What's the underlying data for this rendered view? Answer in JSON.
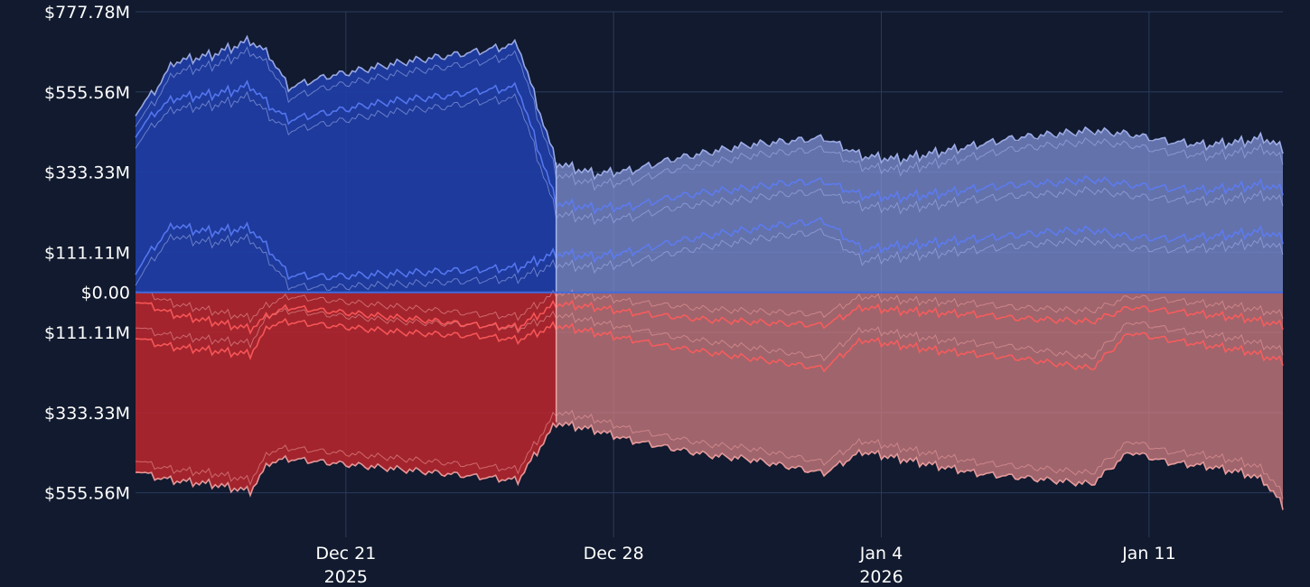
{
  "chart_data": {
    "type": "area",
    "title": "",
    "xlabel": "",
    "ylabel": "",
    "x_range": [
      "2025-12-15T12:00",
      "2026-01-14T12:00"
    ],
    "ylim": [
      -666.67,
      777.78
    ],
    "y_unit": "$M (positive = long side, negative = short side)",
    "y_ticks": [
      {
        "value": 777.78,
        "label": "$777.78M"
      },
      {
        "value": 555.56,
        "label": "$555.56M"
      },
      {
        "value": 333.33,
        "label": "$333.33M"
      },
      {
        "value": 111.11,
        "label": "$111.11M"
      },
      {
        "value": 0,
        "label": "$0.00"
      },
      {
        "value": -111.11,
        "label": "$111.11M"
      },
      {
        "value": -333.33,
        "label": "$333.33M"
      },
      {
        "value": -555.56,
        "label": "$555.56M"
      }
    ],
    "x_ticks": [
      {
        "date": "2025-12-21",
        "label": "Dec 21",
        "year": "2025"
      },
      {
        "date": "2025-12-28",
        "label": "Dec 28",
        "year": ""
      },
      {
        "date": "2026-01-04",
        "label": "Jan 4",
        "year": "2026"
      },
      {
        "date": "2026-01-11",
        "label": "Jan 11",
        "year": ""
      }
    ],
    "regime_split": "2025-12-26T12:00",
    "colors": {
      "long_line": "#5b7cf7",
      "long_line_light": "#a7b6f2",
      "long_fill_dark": "#1f3ea8",
      "long_fill_light": "#7f90d6",
      "short_line": "#ff5b5b",
      "short_line_light": "#f3a3a3",
      "short_fill_dark": "#b4262d",
      "short_fill_light": "#d07d82",
      "zero_line": "#3f6ae0",
      "background": "#111a2e"
    },
    "series": [
      {
        "name": "long_band_top",
        "side": "long",
        "values": [
          [
            0,
            500
          ],
          [
            0.5,
            560
          ],
          [
            1,
            640
          ],
          [
            1.5,
            650
          ],
          [
            2,
            660
          ],
          [
            2.5,
            680
          ],
          [
            3,
            700
          ],
          [
            3.5,
            660
          ],
          [
            4,
            570
          ],
          [
            5,
            600
          ],
          [
            6,
            620
          ],
          [
            7,
            640
          ],
          [
            8,
            655
          ],
          [
            9,
            670
          ],
          [
            10,
            690
          ],
          [
            11,
            360
          ],
          [
            12,
            330
          ],
          [
            13,
            340
          ],
          [
            14,
            370
          ],
          [
            15,
            390
          ],
          [
            16,
            410
          ],
          [
            17,
            420
          ],
          [
            18,
            430
          ],
          [
            19,
            380
          ],
          [
            20,
            370
          ],
          [
            21,
            390
          ],
          [
            22,
            410
          ],
          [
            23,
            430
          ],
          [
            24,
            440
          ],
          [
            25,
            450
          ],
          [
            26,
            440
          ],
          [
            27,
            420
          ],
          [
            28,
            410
          ],
          [
            29,
            420
          ],
          [
            29.5,
            430
          ],
          [
            30,
            400
          ]
        ]
      },
      {
        "name": "long_band_mid",
        "side": "long",
        "values": [
          [
            0,
            440
          ],
          [
            0.5,
            500
          ],
          [
            1,
            540
          ],
          [
            1.5,
            545
          ],
          [
            2,
            550
          ],
          [
            2.5,
            560
          ],
          [
            3,
            575
          ],
          [
            3.5,
            520
          ],
          [
            4,
            480
          ],
          [
            5,
            500
          ],
          [
            6,
            520
          ],
          [
            7,
            535
          ],
          [
            8,
            545
          ],
          [
            9,
            560
          ],
          [
            10,
            570
          ],
          [
            11,
            250
          ],
          [
            12,
            235
          ],
          [
            13,
            240
          ],
          [
            14,
            265
          ],
          [
            15,
            280
          ],
          [
            16,
            290
          ],
          [
            17,
            305
          ],
          [
            18,
            310
          ],
          [
            19,
            270
          ],
          [
            20,
            265
          ],
          [
            21,
            275
          ],
          [
            22,
            290
          ],
          [
            23,
            300
          ],
          [
            24,
            305
          ],
          [
            25,
            315
          ],
          [
            26,
            300
          ],
          [
            27,
            290
          ],
          [
            28,
            285
          ],
          [
            29,
            295
          ],
          [
            29.5,
            300
          ],
          [
            30,
            285
          ]
        ]
      },
      {
        "name": "long_band_low",
        "side": "long",
        "values": [
          [
            0,
            60
          ],
          [
            0.5,
            130
          ],
          [
            1,
            190
          ],
          [
            1.5,
            175
          ],
          [
            2,
            170
          ],
          [
            2.5,
            175
          ],
          [
            3,
            180
          ],
          [
            3.5,
            120
          ],
          [
            4,
            50
          ],
          [
            5,
            45
          ],
          [
            6,
            50
          ],
          [
            7,
            55
          ],
          [
            8,
            60
          ],
          [
            9,
            65
          ],
          [
            10,
            70
          ],
          [
            11,
            110
          ],
          [
            12,
            100
          ],
          [
            13,
            115
          ],
          [
            14,
            140
          ],
          [
            15,
            160
          ],
          [
            16,
            175
          ],
          [
            17,
            190
          ],
          [
            18,
            200
          ],
          [
            19,
            120
          ],
          [
            20,
            130
          ],
          [
            21,
            140
          ],
          [
            22,
            150
          ],
          [
            23,
            160
          ],
          [
            24,
            170
          ],
          [
            25,
            175
          ],
          [
            26,
            155
          ],
          [
            27,
            150
          ],
          [
            28,
            155
          ],
          [
            29,
            165
          ],
          [
            29.5,
            170
          ],
          [
            30,
            150
          ]
        ]
      },
      {
        "name": "short_band_top",
        "side": "short",
        "values": [
          [
            0,
            -20
          ],
          [
            0.5,
            -40
          ],
          [
            1,
            -60
          ],
          [
            1.5,
            -70
          ],
          [
            2,
            -80
          ],
          [
            2.5,
            -90
          ],
          [
            3,
            -100
          ],
          [
            3.5,
            -60
          ],
          [
            4,
            -40
          ],
          [
            5,
            -50
          ],
          [
            6,
            -60
          ],
          [
            7,
            -70
          ],
          [
            8,
            -80
          ],
          [
            9,
            -90
          ],
          [
            10,
            -95
          ],
          [
            11,
            -30
          ],
          [
            12,
            -40
          ],
          [
            13,
            -55
          ],
          [
            14,
            -65
          ],
          [
            15,
            -75
          ],
          [
            16,
            -80
          ],
          [
            17,
            -85
          ],
          [
            18,
            -90
          ],
          [
            19,
            -40
          ],
          [
            20,
            -50
          ],
          [
            21,
            -55
          ],
          [
            22,
            -60
          ],
          [
            23,
            -70
          ],
          [
            24,
            -75
          ],
          [
            25,
            -80
          ],
          [
            26,
            -40
          ],
          [
            27,
            -50
          ],
          [
            28,
            -60
          ],
          [
            29,
            -70
          ],
          [
            29.5,
            -80
          ],
          [
            30,
            -90
          ]
        ]
      },
      {
        "name": "short_band_mid",
        "side": "short",
        "values": [
          [
            0,
            -120
          ],
          [
            0.5,
            -140
          ],
          [
            1,
            -150
          ],
          [
            1.5,
            -155
          ],
          [
            2,
            -160
          ],
          [
            2.5,
            -165
          ],
          [
            3,
            -170
          ],
          [
            3.5,
            -90
          ],
          [
            4,
            -80
          ],
          [
            5,
            -90
          ],
          [
            6,
            -100
          ],
          [
            7,
            -110
          ],
          [
            8,
            -115
          ],
          [
            9,
            -120
          ],
          [
            10,
            -130
          ],
          [
            11,
            -90
          ],
          [
            12,
            -110
          ],
          [
            13,
            -130
          ],
          [
            14,
            -150
          ],
          [
            15,
            -165
          ],
          [
            16,
            -180
          ],
          [
            17,
            -195
          ],
          [
            18,
            -210
          ],
          [
            19,
            -130
          ],
          [
            20,
            -145
          ],
          [
            21,
            -160
          ],
          [
            22,
            -170
          ],
          [
            23,
            -180
          ],
          [
            24,
            -195
          ],
          [
            25,
            -210
          ],
          [
            26,
            -110
          ],
          [
            27,
            -130
          ],
          [
            28,
            -145
          ],
          [
            29,
            -160
          ],
          [
            29.5,
            -175
          ],
          [
            30,
            -190
          ]
        ]
      },
      {
        "name": "short_band_bottom",
        "side": "short",
        "values": [
          [
            0,
            -490
          ],
          [
            0.5,
            -510
          ],
          [
            1,
            -520
          ],
          [
            1.5,
            -525
          ],
          [
            2,
            -530
          ],
          [
            2.5,
            -540
          ],
          [
            3,
            -550
          ],
          [
            3.5,
            -470
          ],
          [
            4,
            -460
          ],
          [
            5,
            -470
          ],
          [
            6,
            -480
          ],
          [
            7,
            -490
          ],
          [
            8,
            -500
          ],
          [
            9,
            -510
          ],
          [
            10,
            -520
          ],
          [
            11,
            -360
          ],
          [
            12,
            -380
          ],
          [
            13,
            -410
          ],
          [
            14,
            -430
          ],
          [
            15,
            -450
          ],
          [
            16,
            -460
          ],
          [
            17,
            -480
          ],
          [
            18,
            -500
          ],
          [
            19,
            -440
          ],
          [
            20,
            -460
          ],
          [
            21,
            -480
          ],
          [
            22,
            -500
          ],
          [
            23,
            -510
          ],
          [
            24,
            -520
          ],
          [
            25,
            -530
          ],
          [
            26,
            -440
          ],
          [
            27,
            -470
          ],
          [
            28,
            -480
          ],
          [
            29,
            -500
          ],
          [
            29.5,
            -520
          ],
          [
            30,
            -590
          ]
        ]
      }
    ]
  }
}
